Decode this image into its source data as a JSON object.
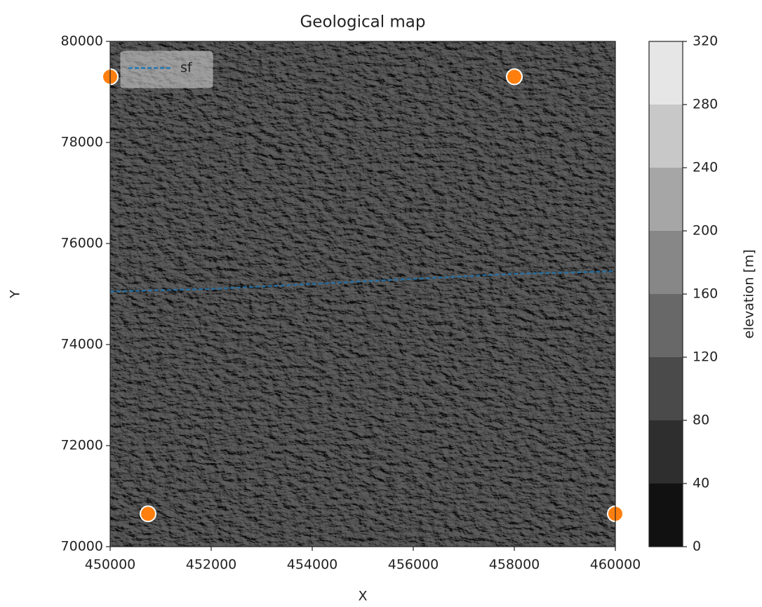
{
  "chart_data": {
    "type": "scatter",
    "title": "Geological map",
    "xlabel": "X",
    "ylabel": "Y",
    "xlim": [
      450000,
      460000
    ],
    "ylim": [
      70000,
      80000
    ],
    "xticks": [
      450000,
      452000,
      454000,
      456000,
      458000,
      460000
    ],
    "yticks": [
      70000,
      72000,
      74000,
      76000,
      78000,
      80000
    ],
    "legend": "upper left",
    "points": {
      "color": "#ff7f0e",
      "x": [
        450000,
        458000,
        450750,
        460000
      ],
      "y": [
        79300,
        79300,
        70650,
        70650
      ]
    },
    "series": [
      {
        "name": "sf",
        "color": "#1f77b4",
        "x": [
          450000,
          452000,
          454000,
          456000,
          458000,
          460000
        ],
        "y": [
          75050,
          75100,
          75200,
          75300,
          75400,
          75450
        ]
      }
    ],
    "colorbar": {
      "label": "elevation [m]",
      "lim": [
        0,
        320
      ],
      "ticks": [
        0,
        40,
        80,
        120,
        160,
        200,
        240,
        280,
        320
      ],
      "colors": [
        "#111111",
        "#2e2e2e",
        "#4a4a4a",
        "#686868",
        "#878787",
        "#a6a6a6",
        "#c8c8c8",
        "#e6e6e6"
      ]
    }
  }
}
